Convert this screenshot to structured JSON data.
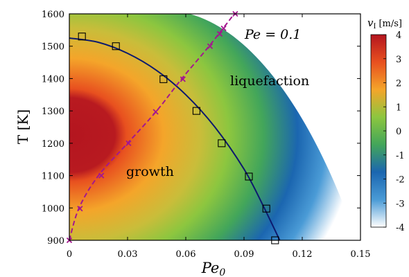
{
  "chart_data": {
    "type": "heatmap",
    "xlabel_main": "Pe",
    "xlabel_sub": "0",
    "ylabel": "T [K]",
    "xlim": [
      0,
      0.15
    ],
    "ylim": [
      900,
      1600
    ],
    "x_ticks": [
      "0",
      "0.03",
      "0.06",
      "0.09",
      "0.12",
      "0.15"
    ],
    "y_ticks": [
      "900",
      "1000",
      "1100",
      "1200",
      "1300",
      "1400",
      "1500",
      "1600"
    ],
    "annotation_pe": "Pe = 0.1",
    "region_growth": "growth",
    "region_liquefaction": "liquefaction",
    "colorbar": {
      "title_main": "v",
      "title_sub": "I",
      "title_unit": "[m/s]",
      "range": [
        -4,
        4
      ],
      "ticks": [
        "4",
        "3",
        "2",
        "1",
        "0",
        "-1",
        "-2",
        "-3",
        "-4"
      ],
      "colors": [
        "#ffffff",
        "#4a9bd6",
        "#1b66b0",
        "#43a65a",
        "#8cc63f",
        "#f4a52a",
        "#e8501f",
        "#b4151f"
      ]
    },
    "boundary_curve": {
      "color": "#0d1a6e",
      "points": [
        [
          0,
          1525
        ],
        [
          0.015,
          1512
        ],
        [
          0.03,
          1478
        ],
        [
          0.045,
          1425
        ],
        [
          0.06,
          1350
        ],
        [
          0.075,
          1250
        ],
        [
          0.09,
          1120
        ],
        [
          0.1,
          1005
        ],
        [
          0.11,
          880
        ]
      ]
    },
    "square_markers": {
      "color": "#000000",
      "points": [
        [
          0.0065,
          1530
        ],
        [
          0.024,
          1500
        ],
        [
          0.0485,
          1398
        ],
        [
          0.0655,
          1300
        ],
        [
          0.0785,
          1200
        ],
        [
          0.0925,
          1097
        ],
        [
          0.1015,
          998
        ],
        [
          0.106,
          900
        ]
      ]
    },
    "dashed_curve": {
      "color": "#a3178f",
      "points": [
        [
          0,
          900
        ],
        [
          0.005,
          1000
        ],
        [
          0.015,
          1100
        ],
        [
          0.03,
          1200
        ],
        [
          0.045,
          1300
        ],
        [
          0.058,
          1400
        ],
        [
          0.072,
          1500
        ],
        [
          0.085,
          1600
        ]
      ]
    },
    "cross_markers": {
      "color": "#a3178f",
      "points": [
        [
          0,
          900
        ],
        [
          0.0055,
          998
        ],
        [
          0.0165,
          1100
        ],
        [
          0.0305,
          1200
        ],
        [
          0.0445,
          1297
        ],
        [
          0.0585,
          1398
        ],
        [
          0.0725,
          1500
        ],
        [
          0.0775,
          1538
        ],
        [
          0.0795,
          1555
        ],
        [
          0.0855,
          1600
        ]
      ]
    }
  }
}
